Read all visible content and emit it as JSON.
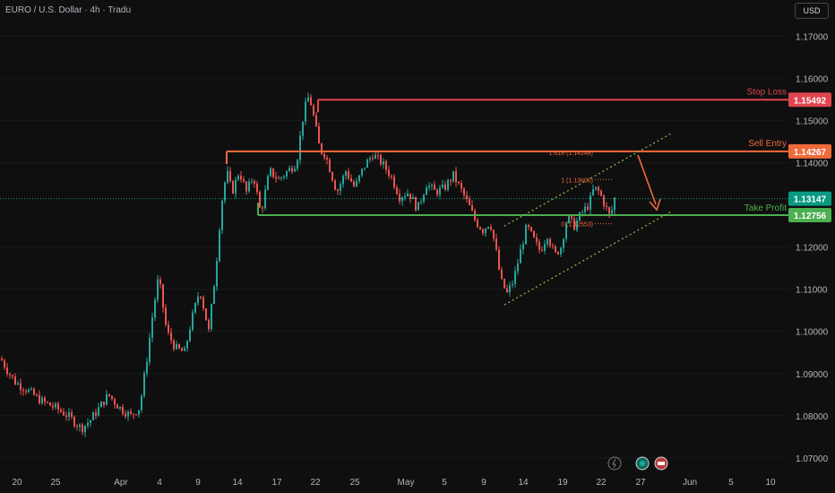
{
  "header": {
    "symbol_title": "EURO / U.S. Dollar · 4h · Tradu",
    "currency": "USD"
  },
  "colors": {
    "background": "#0f0f0f",
    "up_candle": "#26a69a",
    "down_candle": "#ef5350",
    "stop_loss": "#e0454f",
    "sell_entry": "#f06a3a",
    "take_profit": "#4caf50",
    "current_price": "#089981",
    "channel": "#8bc34a",
    "fib": "#f06a3a"
  },
  "price_axis": {
    "ticks": [
      "1.17000",
      "1.16000",
      "1.15000",
      "1.14000",
      "1.12000",
      "1.11000",
      "1.10000",
      "1.09000",
      "1.08000",
      "1.07000"
    ],
    "range": [
      1.068,
      1.178
    ]
  },
  "time_axis": {
    "labels": [
      "20",
      "25",
      "Apr",
      "4",
      "9",
      "14",
      "17",
      "22",
      "25",
      "May",
      "5",
      "9",
      "14",
      "19",
      "22",
      "27",
      "Jun",
      "5",
      "10"
    ]
  },
  "levels": {
    "stop_loss": {
      "label": "Stop Loss",
      "price": "1.15492"
    },
    "sell_entry": {
      "label": "Sell Entry",
      "price": "1.14267"
    },
    "current": {
      "price": "1.13147"
    },
    "take_profit": {
      "label": "Take Profit",
      "price": "1.12756"
    }
  },
  "fibonacci": {
    "level_1618": "1.618 (1.14248)",
    "level_1": "1 (1.13600)",
    "level_0": "0 (1.12553)"
  },
  "chart_data": {
    "type": "candlestick",
    "instrument": "EURO / U.S. Dollar",
    "timeframe": "4h",
    "close_path": [
      [
        0,
        1.0935
      ],
      [
        8,
        1.0905
      ],
      [
        16,
        1.088
      ],
      [
        30,
        1.086
      ],
      [
        45,
        1.0835
      ],
      [
        60,
        1.082
      ],
      [
        75,
        1.08
      ],
      [
        90,
        1.077
      ],
      [
        100,
        1.079
      ],
      [
        110,
        1.082
      ],
      [
        120,
        1.085
      ],
      [
        132,
        1.082
      ],
      [
        145,
        1.08
      ],
      [
        155,
        1.082
      ],
      [
        162,
        1.092
      ],
      [
        170,
        1.105
      ],
      [
        176,
        1.113
      ],
      [
        185,
        1.1
      ],
      [
        195,
        1.096
      ],
      [
        205,
        1.095
      ],
      [
        212,
        1.102
      ],
      [
        222,
        1.11
      ],
      [
        232,
        1.1
      ],
      [
        240,
        1.115
      ],
      [
        246,
        1.13
      ],
      [
        252,
        1.138
      ],
      [
        258,
        1.133
      ],
      [
        266,
        1.138
      ],
      [
        274,
        1.133
      ],
      [
        282,
        1.137
      ],
      [
        290,
        1.128
      ],
      [
        300,
        1.138
      ],
      [
        310,
        1.136
      ],
      [
        320,
        1.138
      ],
      [
        330,
        1.14
      ],
      [
        338,
        1.152
      ],
      [
        344,
        1.156
      ],
      [
        350,
        1.15
      ],
      [
        356,
        1.143
      ],
      [
        362,
        1.142
      ],
      [
        368,
        1.138
      ],
      [
        375,
        1.133
      ],
      [
        385,
        1.138
      ],
      [
        395,
        1.134
      ],
      [
        405,
        1.139
      ],
      [
        415,
        1.142
      ],
      [
        425,
        1.14
      ],
      [
        435,
        1.137
      ],
      [
        445,
        1.132
      ],
      [
        455,
        1.133
      ],
      [
        465,
        1.129
      ],
      [
        475,
        1.135
      ],
      [
        485,
        1.133
      ],
      [
        495,
        1.134
      ],
      [
        505,
        1.137
      ],
      [
        515,
        1.133
      ],
      [
        522,
        1.13
      ],
      [
        530,
        1.126
      ],
      [
        538,
        1.124
      ],
      [
        546,
        1.126
      ],
      [
        552,
        1.12
      ],
      [
        558,
        1.112
      ],
      [
        565,
        1.109
      ],
      [
        572,
        1.112
      ],
      [
        580,
        1.119
      ],
      [
        587,
        1.125
      ],
      [
        594,
        1.122
      ],
      [
        602,
        1.119
      ],
      [
        610,
        1.123
      ],
      [
        618,
        1.118
      ],
      [
        625,
        1.12
      ],
      [
        632,
        1.127
      ],
      [
        640,
        1.125
      ],
      [
        648,
        1.128
      ],
      [
        656,
        1.13
      ],
      [
        662,
        1.134
      ],
      [
        668,
        1.133
      ],
      [
        674,
        1.13
      ],
      [
        680,
        1.127
      ],
      [
        685,
        1.1315
      ]
    ]
  }
}
